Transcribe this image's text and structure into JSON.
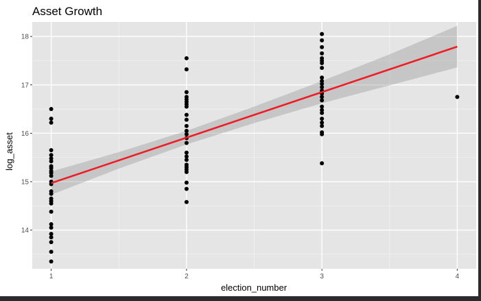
{
  "chart_data": {
    "type": "scatter",
    "title": "Asset Growth",
    "xlabel": "election_number",
    "ylabel": "log_asset",
    "xlim": [
      0.86,
      4.14
    ],
    "ylim": [
      13.2,
      18.3
    ],
    "x_ticks": [
      1,
      2,
      3,
      4
    ],
    "y_ticks": [
      14,
      15,
      16,
      17,
      18
    ],
    "grid": true,
    "colors": {
      "panel": "#e5e5e5",
      "grid_major": "#ffffff",
      "points": "#000000",
      "fit_line": "#ee1c25",
      "ribbon": "#999999"
    },
    "points": [
      {
        "x": 1,
        "y": 16.5
      },
      {
        "x": 1,
        "y": 16.3
      },
      {
        "x": 1,
        "y": 16.22
      },
      {
        "x": 1,
        "y": 15.65
      },
      {
        "x": 1,
        "y": 15.55
      },
      {
        "x": 1,
        "y": 15.48
      },
      {
        "x": 1,
        "y": 15.42
      },
      {
        "x": 1,
        "y": 15.32
      },
      {
        "x": 1,
        "y": 15.28
      },
      {
        "x": 1,
        "y": 15.22
      },
      {
        "x": 1,
        "y": 15.18
      },
      {
        "x": 1,
        "y": 15.12
      },
      {
        "x": 1,
        "y": 15.0
      },
      {
        "x": 1,
        "y": 14.95
      },
      {
        "x": 1,
        "y": 14.8
      },
      {
        "x": 1,
        "y": 14.75
      },
      {
        "x": 1,
        "y": 14.65
      },
      {
        "x": 1,
        "y": 14.6
      },
      {
        "x": 1,
        "y": 14.55
      },
      {
        "x": 1,
        "y": 14.38
      },
      {
        "x": 1,
        "y": 14.12
      },
      {
        "x": 1,
        "y": 14.05
      },
      {
        "x": 1,
        "y": 13.92
      },
      {
        "x": 1,
        "y": 13.85
      },
      {
        "x": 1,
        "y": 13.75
      },
      {
        "x": 1,
        "y": 13.55
      },
      {
        "x": 1,
        "y": 13.35
      },
      {
        "x": 2,
        "y": 17.55
      },
      {
        "x": 2,
        "y": 17.32
      },
      {
        "x": 2,
        "y": 16.85
      },
      {
        "x": 2,
        "y": 16.75
      },
      {
        "x": 2,
        "y": 16.7
      },
      {
        "x": 2,
        "y": 16.65
      },
      {
        "x": 2,
        "y": 16.6
      },
      {
        "x": 2,
        "y": 16.55
      },
      {
        "x": 2,
        "y": 16.38
      },
      {
        "x": 2,
        "y": 16.28
      },
      {
        "x": 2,
        "y": 16.15
      },
      {
        "x": 2,
        "y": 16.05
      },
      {
        "x": 2,
        "y": 15.98
      },
      {
        "x": 2,
        "y": 15.9
      },
      {
        "x": 2,
        "y": 15.8
      },
      {
        "x": 2,
        "y": 15.6
      },
      {
        "x": 2,
        "y": 15.52
      },
      {
        "x": 2,
        "y": 15.45
      },
      {
        "x": 2,
        "y": 15.35
      },
      {
        "x": 2,
        "y": 15.3
      },
      {
        "x": 2,
        "y": 15.25
      },
      {
        "x": 2,
        "y": 15.2
      },
      {
        "x": 2,
        "y": 14.98
      },
      {
        "x": 2,
        "y": 14.85
      },
      {
        "x": 2,
        "y": 14.58
      },
      {
        "x": 3,
        "y": 18.05
      },
      {
        "x": 3,
        "y": 17.92
      },
      {
        "x": 3,
        "y": 17.78
      },
      {
        "x": 3,
        "y": 17.65
      },
      {
        "x": 3,
        "y": 17.55
      },
      {
        "x": 3,
        "y": 17.5
      },
      {
        "x": 3,
        "y": 17.45
      },
      {
        "x": 3,
        "y": 17.35
      },
      {
        "x": 3,
        "y": 17.15
      },
      {
        "x": 3,
        "y": 17.08
      },
      {
        "x": 3,
        "y": 17.02
      },
      {
        "x": 3,
        "y": 16.95
      },
      {
        "x": 3,
        "y": 16.88
      },
      {
        "x": 3,
        "y": 16.82
      },
      {
        "x": 3,
        "y": 16.75
      },
      {
        "x": 3,
        "y": 16.68
      },
      {
        "x": 3,
        "y": 16.55
      },
      {
        "x": 3,
        "y": 16.48
      },
      {
        "x": 3,
        "y": 16.42
      },
      {
        "x": 3,
        "y": 16.3
      },
      {
        "x": 3,
        "y": 16.22
      },
      {
        "x": 3,
        "y": 16.15
      },
      {
        "x": 3,
        "y": 16.02
      },
      {
        "x": 3,
        "y": 15.98
      },
      {
        "x": 3,
        "y": 15.38
      },
      {
        "x": 4,
        "y": 16.75
      }
    ],
    "fit": {
      "method": "lm",
      "line": [
        {
          "x": 1,
          "y": 14.97
        },
        {
          "x": 4,
          "y": 17.79
        }
      ],
      "band": [
        {
          "x": 1.0,
          "lower": 14.73,
          "upper": 15.21
        },
        {
          "x": 1.5,
          "lower": 15.27,
          "upper": 15.61
        },
        {
          "x": 2.0,
          "lower": 15.77,
          "upper": 16.05
        },
        {
          "x": 2.5,
          "lower": 16.21,
          "upper": 16.55
        },
        {
          "x": 3.0,
          "lower": 16.62,
          "upper": 17.08
        },
        {
          "x": 3.5,
          "lower": 16.99,
          "upper": 17.63
        },
        {
          "x": 4.0,
          "lower": 17.36,
          "upper": 18.22
        }
      ]
    }
  }
}
